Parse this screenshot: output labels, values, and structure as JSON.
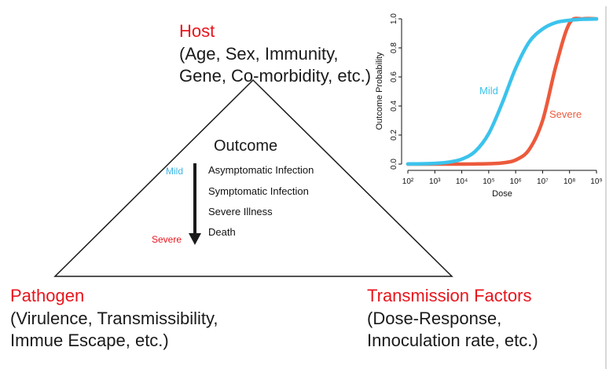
{
  "host": {
    "title": "Host",
    "line1": "(Age, Sex, Immunity,",
    "line2": "Gene, Co-morbidity, etc.)"
  },
  "pathogen": {
    "title": "Pathogen",
    "line1": "(Virulence, Transmissibility,",
    "line2": "Immue Escape, etc.)"
  },
  "transmission": {
    "title": "Transmission Factors",
    "line1": "(Dose-Response,",
    "line2": "Innoculation rate, etc.)"
  },
  "outcome": {
    "title": "Outcome",
    "mild_label": "Mild",
    "severe_label": "Severe",
    "items": [
      "Asymptomatic Infection",
      "Symptomatic Infection",
      "Severe Illness",
      "Death"
    ]
  },
  "colors": {
    "mild": "#3bc3ec",
    "severe": "#ec5a3c",
    "label_red": "#e8141c",
    "arrow": "#1a1a1a"
  },
  "chart_data": {
    "type": "line",
    "xlabel": "Dose",
    "ylabel": "Outcome Probability",
    "xscale": "log",
    "xlim": [
      100,
      1000000000
    ],
    "ylim": [
      0,
      1
    ],
    "xtick_labels": [
      "10²",
      "10³",
      "10⁴",
      "10⁵",
      "10⁶",
      "10⁷",
      "10⁸",
      "10⁹"
    ],
    "xtick_values": [
      100,
      1000,
      10000,
      100000,
      1000000,
      10000000,
      100000000,
      1000000000
    ],
    "ytick_labels": [
      "0.0",
      "0.2",
      "0.4",
      "0.6",
      "0.8",
      "1.0"
    ],
    "ytick_values": [
      0,
      0.2,
      0.4,
      0.6,
      0.8,
      1.0
    ],
    "grid": false,
    "x": [
      100,
      316,
      1000,
      3162,
      10000,
      31623,
      100000,
      316228,
      1000000,
      3162278,
      10000000,
      31622777,
      100000000,
      316227766,
      1000000000
    ],
    "series": [
      {
        "name": "Mild",
        "color": "#3bc3ec",
        "values": [
          0.001,
          0.002,
          0.005,
          0.013,
          0.034,
          0.088,
          0.21,
          0.42,
          0.66,
          0.84,
          0.93,
          0.975,
          0.99,
          0.997,
          0.999
        ]
      },
      {
        "name": "Severe",
        "color": "#ec5a3c",
        "values": [
          0,
          0,
          0,
          0,
          0,
          0.001,
          0.003,
          0.008,
          0.028,
          0.1,
          0.3,
          0.68,
          0.97,
          1.0,
          1.0
        ]
      }
    ]
  }
}
